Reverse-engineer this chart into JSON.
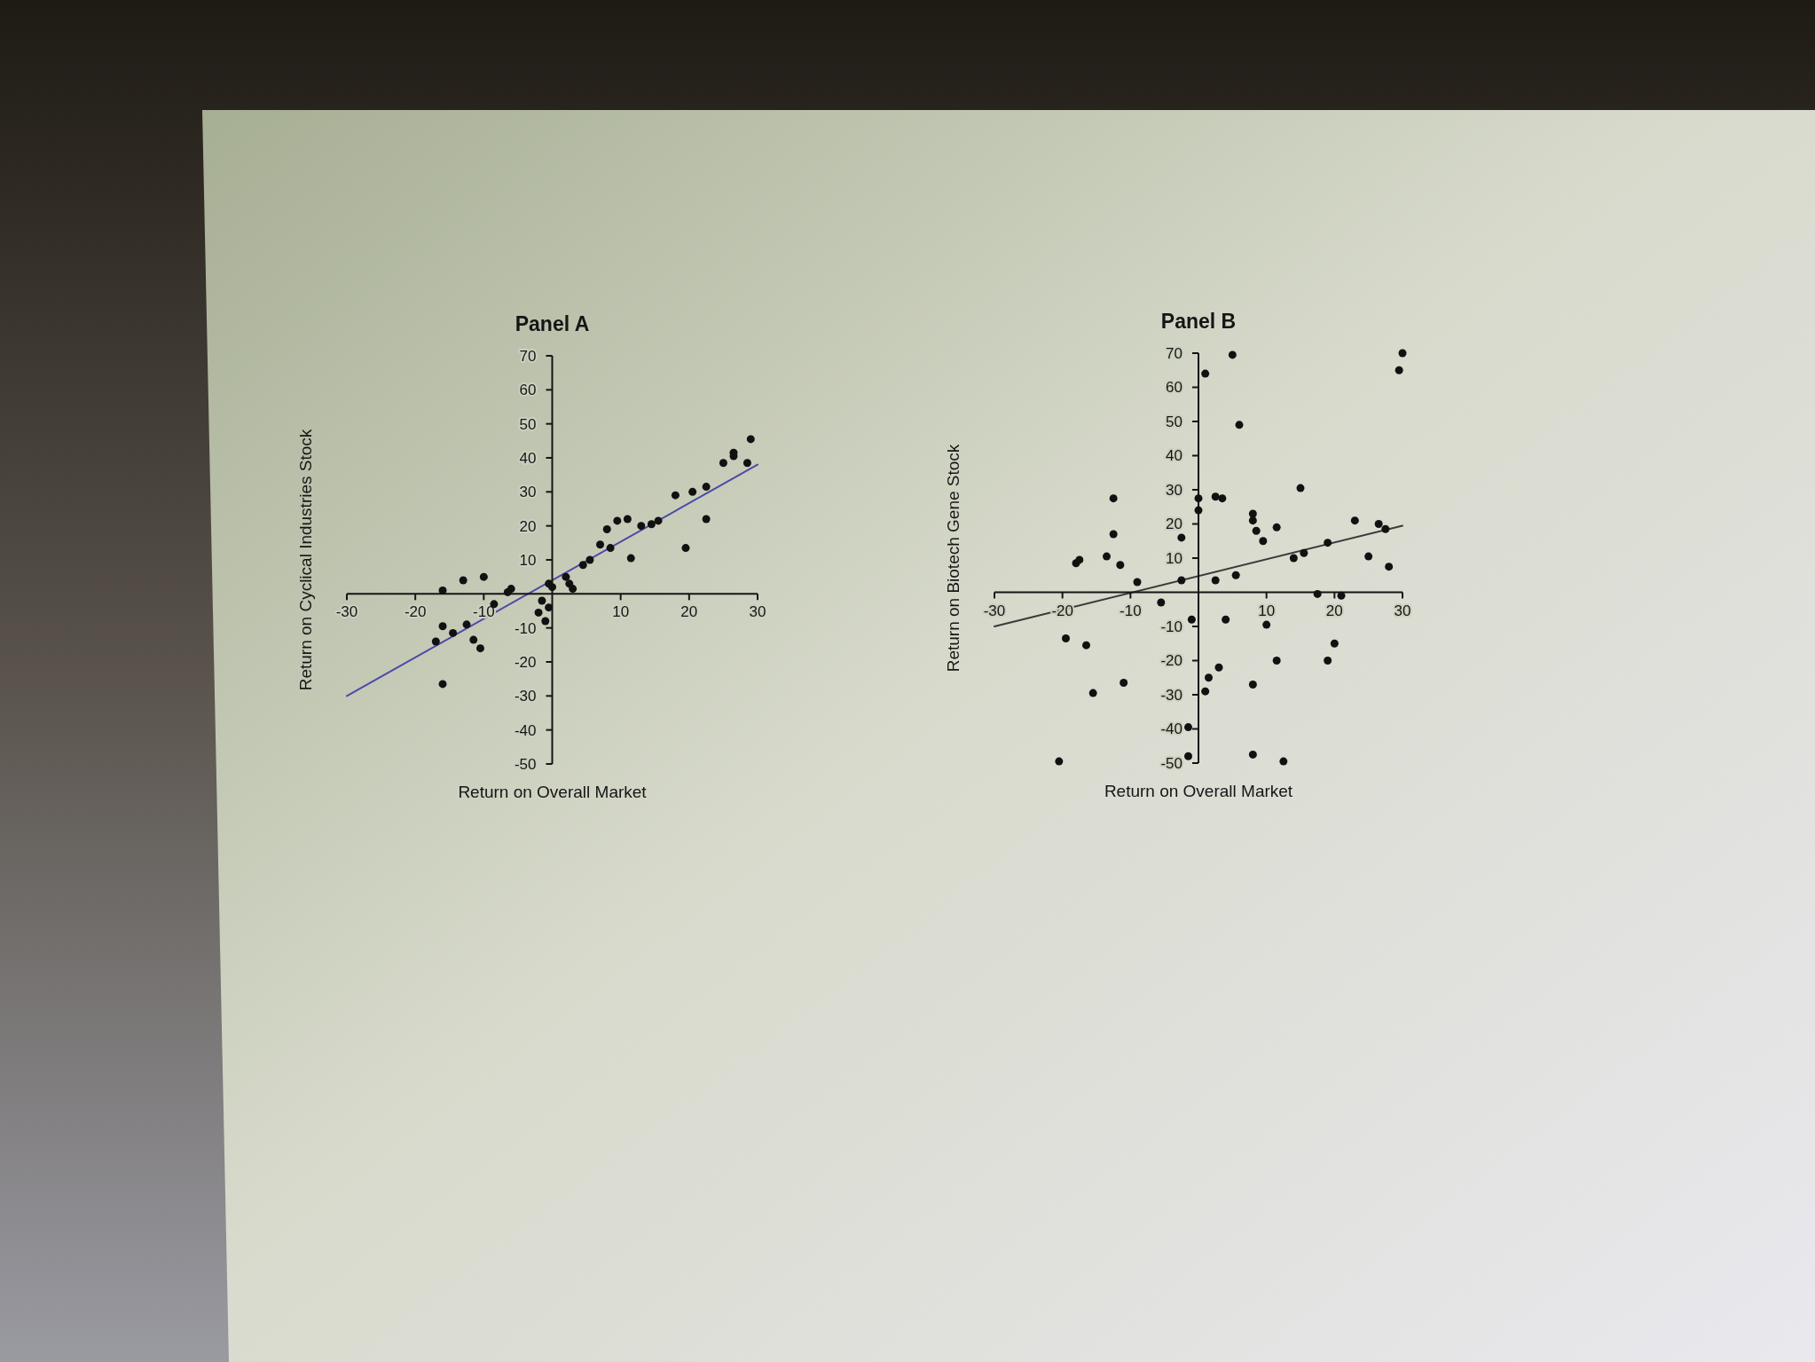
{
  "chart_data": [
    {
      "type": "scatter",
      "title": "Panel A",
      "xlabel": "Return on Overall Market",
      "ylabel": "Return on Cyclical Industries Stock",
      "xlim": [
        -30,
        30
      ],
      "ylim": [
        -50,
        70
      ],
      "xticks": [
        -30,
        -20,
        -10,
        10,
        20,
        30
      ],
      "yticks": [
        -50,
        -40,
        -30,
        -20,
        -10,
        10,
        20,
        30,
        40,
        50,
        60,
        70
      ],
      "series": [
        {
          "color": "#111111",
          "marker": "circle",
          "x": [
            29,
            26.5,
            28.5,
            25,
            26.5,
            22.5,
            20.5,
            18,
            22.5,
            19.5,
            15.5,
            14.5,
            13,
            11,
            9.5,
            8,
            7,
            8.5,
            5.5,
            4.5,
            11.5,
            2.5,
            2,
            3,
            0,
            -0.5,
            -1.5,
            -0.5,
            -6,
            -6.5,
            -10,
            -13,
            -16,
            -8.5,
            -16,
            -17,
            -14.5,
            -11.5,
            -10.5,
            -12.5,
            -16,
            -2,
            -1
          ],
          "values": [
            45.5,
            41.5,
            38.5,
            38.5,
            40.5,
            31.5,
            30,
            29,
            22,
            13.5,
            21.5,
            20.5,
            20,
            22,
            21.5,
            19,
            14.5,
            13.5,
            10,
            8.5,
            10.5,
            3,
            5,
            1.5,
            2,
            3,
            -2,
            -4,
            1.5,
            0.5,
            5,
            4,
            1,
            -3,
            -9.5,
            -14,
            -11.5,
            -13.5,
            -16,
            -9,
            -26.5,
            -5.5,
            -8
          ]
        },
        {
          "type": "line",
          "marker": "none",
          "color": "#4a4aa8",
          "x": [
            -30,
            30
          ],
          "values": [
            -30,
            38
          ]
        }
      ]
    },
    {
      "type": "scatter",
      "title": "Panel B",
      "xlabel": "Return on Overall Market",
      "ylabel": "Return on Biotech Gene Stock",
      "xlim": [
        -30,
        30
      ],
      "ylim": [
        -50,
        70
      ],
      "xticks": [
        -30,
        -20,
        -10,
        10,
        20,
        30
      ],
      "yticks": [
        -50,
        -40,
        -30,
        -20,
        -10,
        10,
        20,
        30,
        40,
        50,
        60,
        70
      ],
      "series": [
        {
          "color": "#111111",
          "marker": "circle",
          "x": [
            5,
            1,
            30,
            29.5,
            6,
            15,
            2.5,
            3.5,
            0,
            0,
            -2.5,
            -12.5,
            -12.5,
            -18,
            -17.5,
            -13.5,
            -11.5,
            -9,
            -2.5,
            -5.5,
            2.5,
            5.5,
            8,
            8,
            8.5,
            9.5,
            11.5,
            14,
            15.5,
            19,
            23,
            26.5,
            27.5,
            25,
            28,
            17.5,
            21,
            4,
            10,
            20,
            19,
            11.5,
            3,
            1.5,
            1,
            8,
            -11,
            -15.5,
            -19.5,
            -16.5,
            -20.5,
            -1.5,
            -1.5,
            8,
            12.5,
            -1
          ],
          "values": [
            69.5,
            64,
            70,
            65,
            49,
            30.5,
            28,
            27.5,
            27.5,
            24,
            16,
            27.5,
            17,
            8.5,
            9.5,
            10.5,
            8,
            3,
            3.5,
            -3,
            3.5,
            5,
            23,
            21,
            18,
            15,
            19,
            10,
            11.5,
            14.5,
            21,
            20,
            18.5,
            10.5,
            7.5,
            -0.5,
            -1,
            -8,
            -9.5,
            -15,
            -20,
            -20,
            -22,
            -25,
            -29,
            -27,
            -26.5,
            -29.5,
            -13.5,
            -15.5,
            -49.5,
            -39.5,
            -48,
            -47.5,
            -49.5,
            -8
          ]
        },
        {
          "type": "line",
          "marker": "none",
          "color": "#3a3a3a",
          "x": [
            -30,
            30
          ],
          "values": [
            -10,
            19.5
          ]
        }
      ]
    }
  ]
}
